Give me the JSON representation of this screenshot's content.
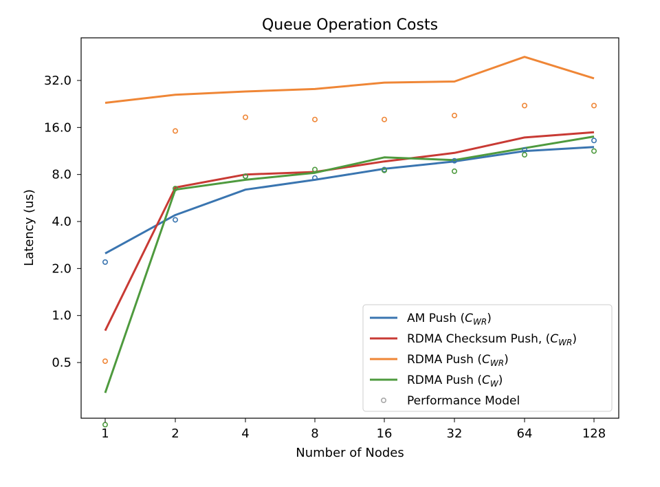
{
  "chart_data": {
    "type": "line",
    "title": "Queue Operation Costs",
    "xlabel": "Number of Nodes",
    "ylabel": "Latency (us)",
    "x": [
      1,
      2,
      4,
      8,
      16,
      32,
      64,
      128
    ],
    "x_tick_labels": [
      "1",
      "2",
      "4",
      "8",
      "16",
      "32",
      "64",
      "128"
    ],
    "x_scale": "log2",
    "y_scale": "log2",
    "y_ticks": [
      0.5,
      1.0,
      2.0,
      4.0,
      8.0,
      16.0,
      32.0
    ],
    "y_tick_labels": [
      "0.5",
      "1.0",
      "2.0",
      "4.0",
      "8.0",
      "16.0",
      "32.0"
    ],
    "ylim": [
      0.22,
      60
    ],
    "grid": false,
    "legend_position": "lower-right",
    "series": [
      {
        "name": "AM Push",
        "subscript": "WR",
        "color": "#3a75b0",
        "values": [
          2.5,
          4.4,
          6.4,
          7.4,
          8.7,
          9.7,
          11.3,
          12.0
        ],
        "model": [
          2.2,
          4.1,
          7.8,
          7.6,
          8.6,
          9.8,
          11.5,
          13.2
        ]
      },
      {
        "name": "RDMA Checksum Push,",
        "subscript": "WR",
        "color": "#c83a34",
        "values": [
          0.8,
          6.6,
          8.0,
          8.3,
          9.7,
          11.0,
          13.8,
          14.9
        ],
        "model": []
      },
      {
        "name": "RDMA Push",
        "subscript": "WR",
        "color": "#ef8636",
        "values": [
          23.0,
          25.9,
          27.2,
          28.2,
          31.0,
          31.5,
          45.3,
          33.0
        ],
        "model": [
          0.51,
          15.2,
          18.6,
          18.0,
          18.0,
          19.1,
          22.1,
          22.1
        ]
      },
      {
        "name": "RDMA Push",
        "subscript": "W",
        "color": "#4e9a3e",
        "values": [
          0.32,
          6.4,
          7.4,
          8.2,
          10.3,
          9.9,
          11.8,
          14.0
        ],
        "model": [
          0.2,
          6.5,
          7.8,
          8.6,
          8.5,
          8.4,
          10.7,
          11.3
        ]
      }
    ],
    "model_legend": {
      "label": "Performance Model",
      "color": "#a7a7a7"
    }
  }
}
